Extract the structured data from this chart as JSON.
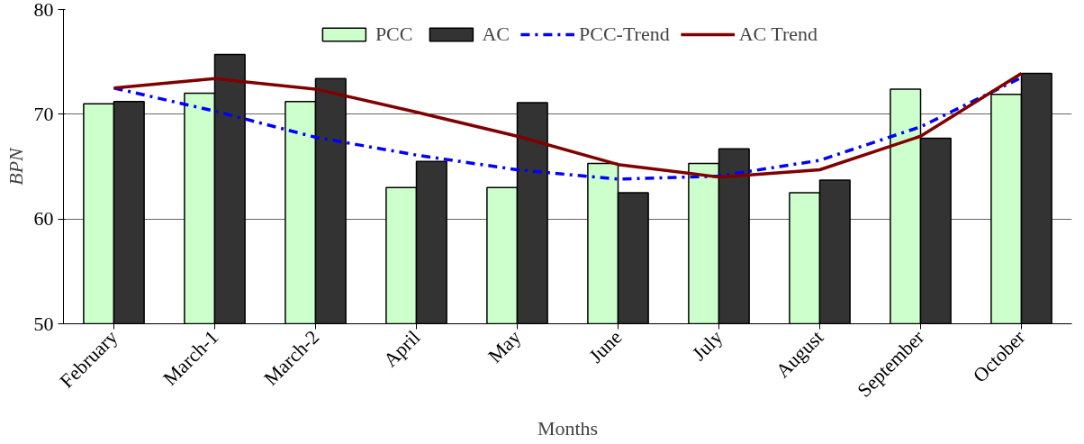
{
  "chart_data": {
    "type": "bar",
    "xlabel": "Months",
    "ylabel": "BPN",
    "categories": [
      "February",
      "March-1",
      "March-2",
      "April",
      "May",
      "June",
      "July",
      "August",
      "September",
      "October"
    ],
    "series": [
      {
        "name": "PCC",
        "color": "#ccffcc",
        "values": [
          71.0,
          72.0,
          71.2,
          63.0,
          63.0,
          65.3,
          65.3,
          62.5,
          72.4,
          71.9
        ]
      },
      {
        "name": "AC",
        "color": "#333333",
        "values": [
          71.2,
          75.7,
          73.4,
          65.5,
          71.1,
          62.5,
          66.7,
          63.7,
          67.7,
          73.9
        ]
      },
      {
        "name": "PCC-Trend",
        "type": "line",
        "line_style": "dashed",
        "color": "#0000ff",
        "values": [
          72.5,
          70.3,
          67.8,
          66.1,
          64.7,
          63.8,
          64.1,
          65.6,
          68.8,
          73.5
        ]
      },
      {
        "name": "AC Trend",
        "type": "line",
        "line_style": "solid",
        "color": "#800000",
        "values": [
          72.5,
          73.4,
          72.4,
          70.2,
          67.9,
          65.2,
          64.0,
          64.7,
          67.9,
          73.9
        ]
      }
    ],
    "ylim": [
      50,
      80
    ],
    "yticks": [
      50,
      60,
      70,
      80
    ],
    "grid": "y",
    "legend": "top",
    "marker": "none"
  }
}
